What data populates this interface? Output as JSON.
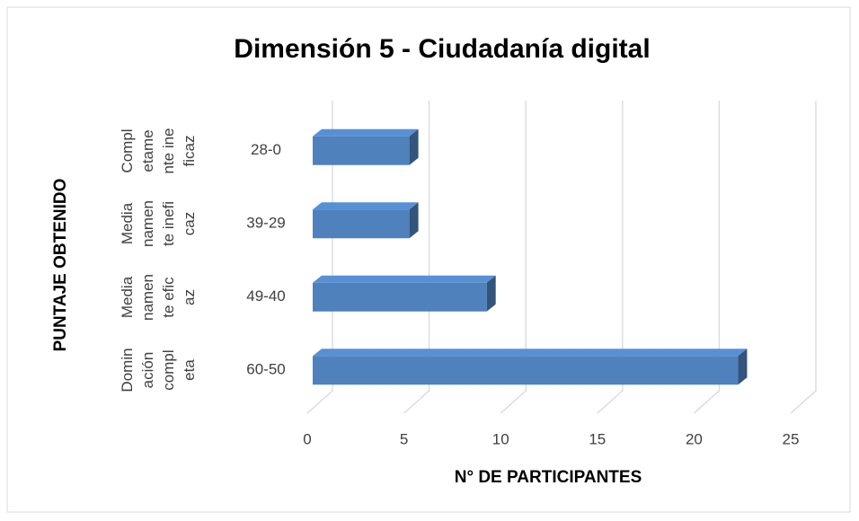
{
  "chart_data": {
    "type": "bar3d_horizontal",
    "title": "Dimensión 5 - Ciudadanía digital",
    "x_label": "N° DE PARTICIPANTES",
    "y_label": "PUNTAJE OBTENIDO",
    "groups": [
      "Completamente ineficaz",
      "Medianamente ineficaz",
      "Medianamente eficaz",
      "Dominación completa"
    ],
    "categories": [
      "28-0",
      "39-29",
      "49-40",
      "60-50"
    ],
    "values": [
      5,
      5,
      9,
      22
    ],
    "color": "#4f81bd",
    "xlim": [
      0,
      25
    ],
    "xticks": [
      0,
      5,
      10,
      15,
      20,
      25
    ],
    "grid": true
  }
}
